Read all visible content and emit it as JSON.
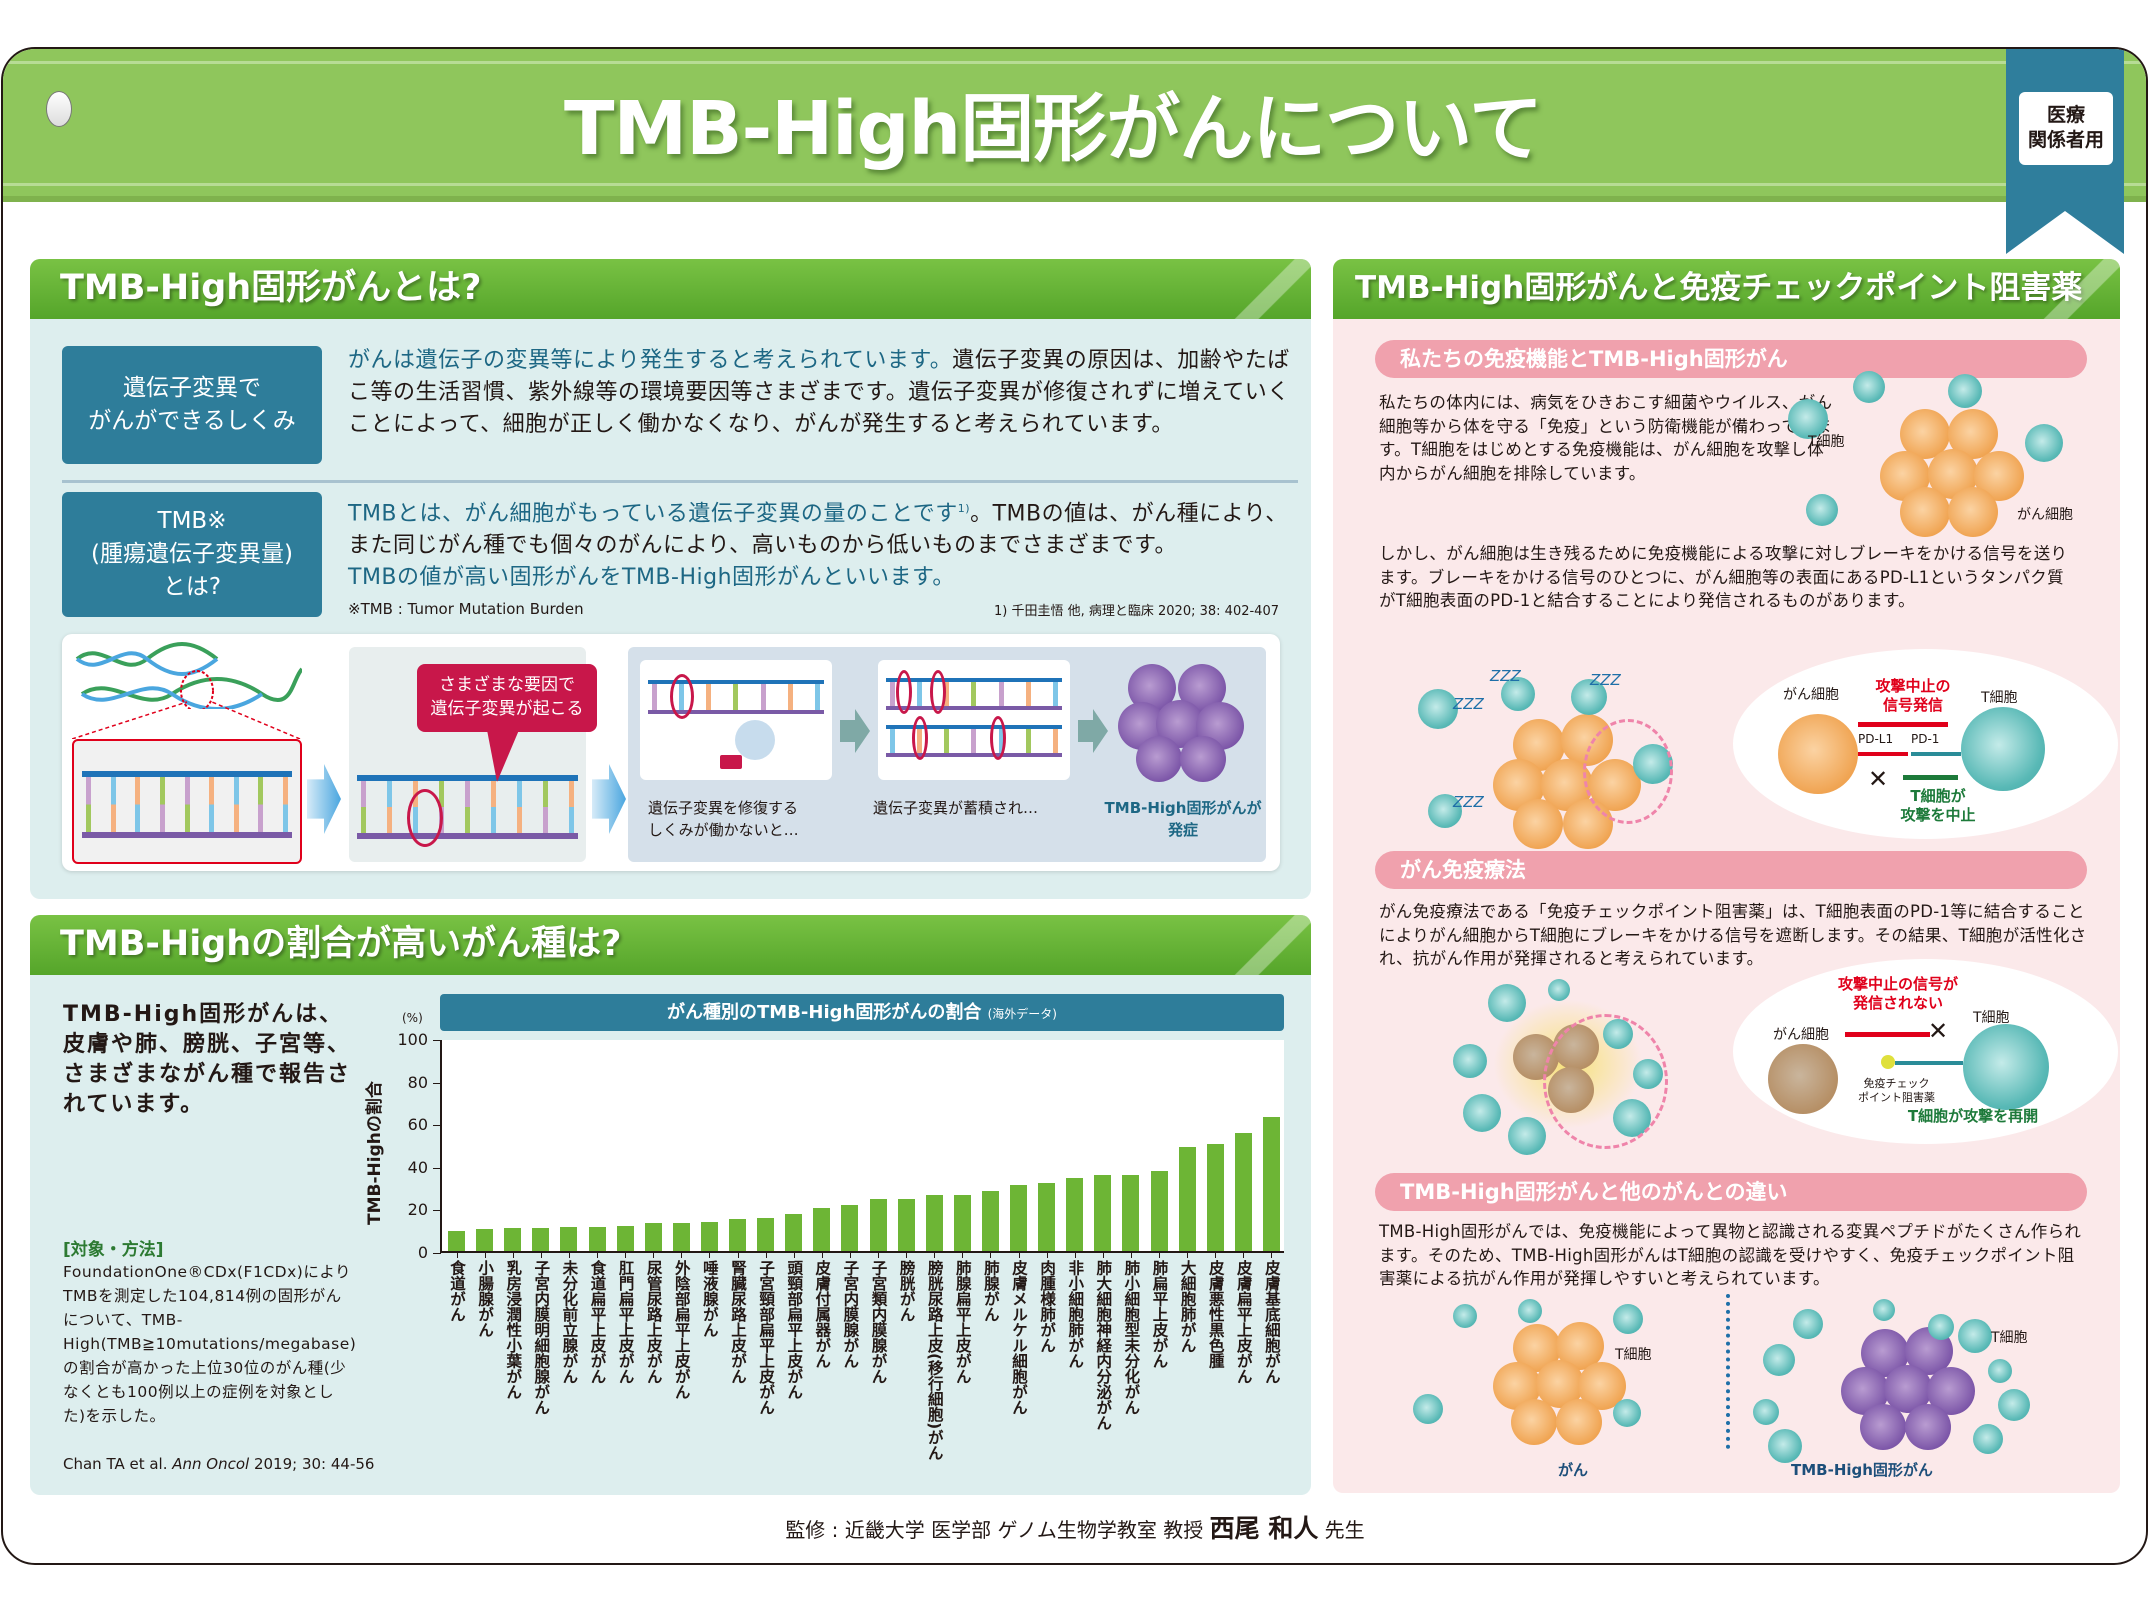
{
  "header": {
    "title": "TMB-High固形がんについて",
    "badge_line1": "医療",
    "badge_line2": "関係者用"
  },
  "section1": {
    "title": "TMB-High固形がんとは?",
    "block1": {
      "label_line1": "遺伝子変異で",
      "label_line2": "がんができるしくみ",
      "text_highlight": "がんは遺伝子の変異等により発生すると考えられています。",
      "text_rest": "遺伝子変異の原因は、加齢やたばこ等の生活習慣、紫外線等の環境要因等さまざまです。遺伝子変異が修復されずに増えていくことによって、細胞が正しく働かなくなり、がんが発生すると考えられています。"
    },
    "block2": {
      "label_line1": "TMB※",
      "label_line2": "(腫瘍遺伝子変異量)",
      "label_line3": "とは?",
      "text_highlight1": "TMBとは、がん細胞がもっている遺伝子変異の量のことです",
      "superscript": "1)",
      "text_rest": "。TMBの値は、がん種により、また同じがん種でも個々のがんにより、高いものから低いものまでさまざまです。",
      "text_highlight2": "TMBの値が高い固形がんをTMB-High固形がんといいます。",
      "footnote_left": "※TMB : Tumor Mutation Burden",
      "footnote_right": "1) 千田圭悟 他, 病理と臨床 2020; 38: 402-407"
    },
    "illustration": {
      "callout_line1": "さまざまな要因で",
      "callout_line2": "遺伝子変異が起こる",
      "caption1_line1": "遺伝子変異を修復する",
      "caption1_line2": "しくみが働かないと…",
      "caption2": "遺伝子変異が蓄積され…",
      "caption3_line1": "TMB-High固形がんが",
      "caption3_line2": "発症"
    }
  },
  "section2": {
    "title": "TMB-Highの割合が高いがん種は?",
    "lead": "TMB-High固形がんは、皮膚や肺、膀胱、子宮等、さまざまながん種で報告されています。",
    "method_heading": "[対象・方法]",
    "method_text": "FoundationOne®CDx(F1CDx)によりTMBを測定した104,814例の固形がんについて、TMB-High(TMB≧10mutations/megabase)の割合が高かった上位30位のがん種(少なくとも100例以上の症例を対象とした)を示した。",
    "citation_prefix": "Chan TA et al. ",
    "citation_journal": "Ann Oncol",
    "citation_suffix": " 2019; 30: 44-56"
  },
  "chart_data": {
    "type": "bar",
    "title": "がん種別のTMB-High固形がんの割合",
    "subtitle": "(海外データ)",
    "xlabel": "",
    "ylabel": "TMB-Highの割合",
    "yunit": "(%)",
    "ylim": [
      0,
      100
    ],
    "yticks": [
      0,
      20,
      40,
      60,
      80,
      100
    ],
    "grid": false,
    "legend": null,
    "bar_color": "#6db535",
    "categories": [
      "食道がん",
      "小腸腺がん",
      "乳房浸潤性小葉がん",
      "子宮内膜明細胞腺がん",
      "未分化前立腺がん",
      "食道扁平上皮がん",
      "肛門扁平上皮がん",
      "尿管尿路上皮がん",
      "外陰部扁平上皮がん",
      "唾液腺がん",
      "腎臓尿路上皮がん",
      "子宮頸部扁平上皮がん",
      "頭頸部扁平上皮がん",
      "皮膚付属器がん",
      "子宮内膜腺がん",
      "子宮類内膜腺がん",
      "膀胱がん",
      "膀胱尿路上皮(移行細胞)がん",
      "肺腺扁平上皮がん",
      "肺腺がん",
      "皮膚メルケル細胞がん",
      "肉腫様肺がん",
      "非小細胞肺がん",
      "肺大細胞神経内分泌がん",
      "肺小細胞型未分化がん",
      "肺扁平上皮がん",
      "大細胞肺がん",
      "皮膚悪性黒色腫",
      "皮膚扁平上皮がん",
      "皮膚基底細胞がん"
    ],
    "values": [
      9.6,
      10.2,
      10.7,
      10.7,
      11.1,
      11.1,
      11.6,
      13.0,
      13.0,
      13.5,
      14.9,
      15.7,
      17.6,
      20.4,
      21.8,
      24.6,
      24.6,
      26.1,
      26.5,
      28.0,
      31.2,
      31.7,
      34.5,
      35.5,
      35.9,
      37.4,
      48.7,
      50.1,
      55.3,
      62.8
    ]
  },
  "section3": {
    "title": "TMB-High固形がんと免疫チェックポイント阻害薬",
    "sub1": {
      "title": "私たちの免疫機能とTMB-High固形がん",
      "text1": "私たちの体内には、病気をひきおこす細菌やウイルス、がん細胞等から体を守る「免疫」という防衛機能が備わっています。T細胞をはじめとする免疫機能は、がん細胞を攻撃し体内からがん細胞を排除しています。",
      "label_tcell": "T細胞",
      "label_cancer": "がん細胞",
      "text2": "しかし、がん細胞は生き残るために免疫機能による攻撃に対しブレーキをかける信号を送ります。ブレーキをかける信号のひとつに、がん細胞等の表面にあるPD-L1というタンパク質がT細胞表面のPD-1と結合することにより発信されるものがあります。",
      "diagram": {
        "zzz": "ZZZ",
        "cancer_label": "がん細胞",
        "tcell_label": "T細胞",
        "signal_line1": "攻撃中止の",
        "signal_line2": "信号発信",
        "pdl1": "PD-L1",
        "pd1": "PD-1",
        "stop_line1": "T細胞が",
        "stop_line2": "攻撃を中止"
      }
    },
    "sub2": {
      "title": "がん免疫療法",
      "text": "がん免疫療法である「免疫チェックポイント阻害薬」は、T細胞表面のPD-1等に結合することによりがん細胞からT細胞にブレーキをかける信号を遮断します。その結果、T細胞が活性化され、抗がん作用が発揮されると考えられています。",
      "diagram": {
        "signal_line1": "攻撃中止の信号が",
        "signal_line2": "発信されない",
        "cancer_label": "がん細胞",
        "tcell_label": "T細胞",
        "drug_line1": "免疫チェック",
        "drug_line2": "ポイント阻害薬",
        "resume": "T細胞が攻撃を再開"
      }
    },
    "sub3": {
      "title": "TMB-High固形がんと他のがんとの違い",
      "text": "TMB-High固形がんでは、免疫機能によって異物と認識される変異ペプチドがたくさん作られます。そのため、TMB-High固形がんはT細胞の認識を受けやすく、免疫チェックポイント阻害薬による抗がん作用が発揮しやすいと考えられています。",
      "left_label": "がん",
      "right_label": "TMB-High固形がん",
      "tcell_label": "T細胞"
    }
  },
  "footer": {
    "prefix": "監修 : 近畿大学 医学部 ゲノム生物学教室 教授 ",
    "name": "西尾 和人",
    "suffix": " 先生"
  }
}
